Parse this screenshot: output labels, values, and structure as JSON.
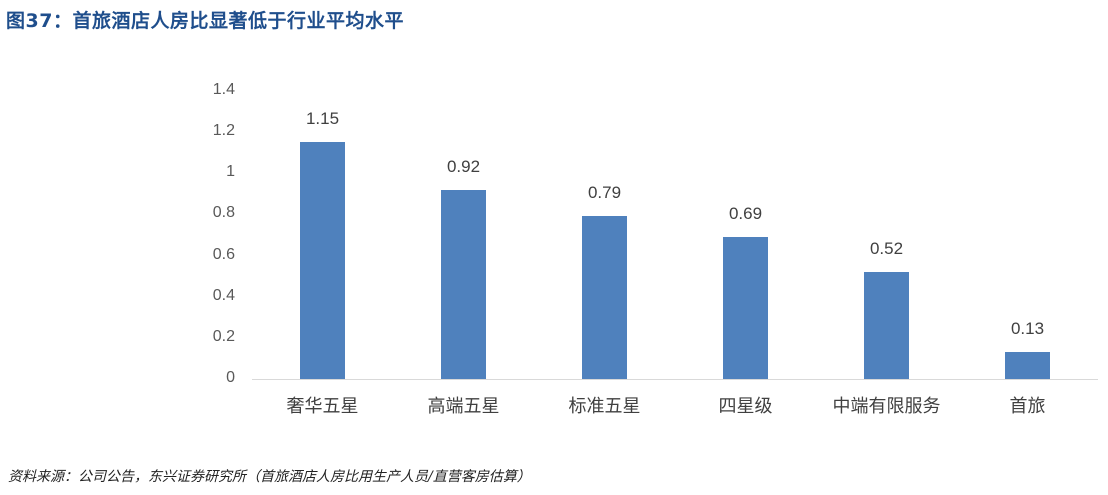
{
  "title": "图37：首旅酒店人房比显著低于行业平均水平",
  "source": "资料来源：公司公告，东兴证券研究所（首旅酒店人房比用生产人员/直营客房估算）",
  "colors": {
    "bar": "#4f81bd",
    "title": "#1f4e8c",
    "axis": "#d9d9d9"
  },
  "chart_data": {
    "type": "bar",
    "title": "首旅酒店人房比显著低于行业平均水平",
    "categories": [
      "奢华五星",
      "高端五星",
      "标准五星",
      "四星级",
      "中端有限服务",
      "首旅"
    ],
    "values": [
      1.15,
      0.92,
      0.79,
      0.69,
      0.52,
      0.13
    ],
    "value_labels": [
      "1.15",
      "0.92",
      "0.79",
      "0.69",
      "0.52",
      "0.13"
    ],
    "xlabel": "",
    "ylabel": "",
    "ylim": [
      0,
      1.4
    ],
    "yticks": [
      "0",
      "0.2",
      "0.4",
      "0.6",
      "0.8",
      "1",
      "1.2",
      "1.4"
    ],
    "grid": false,
    "legend": "none",
    "data_labels": true
  }
}
